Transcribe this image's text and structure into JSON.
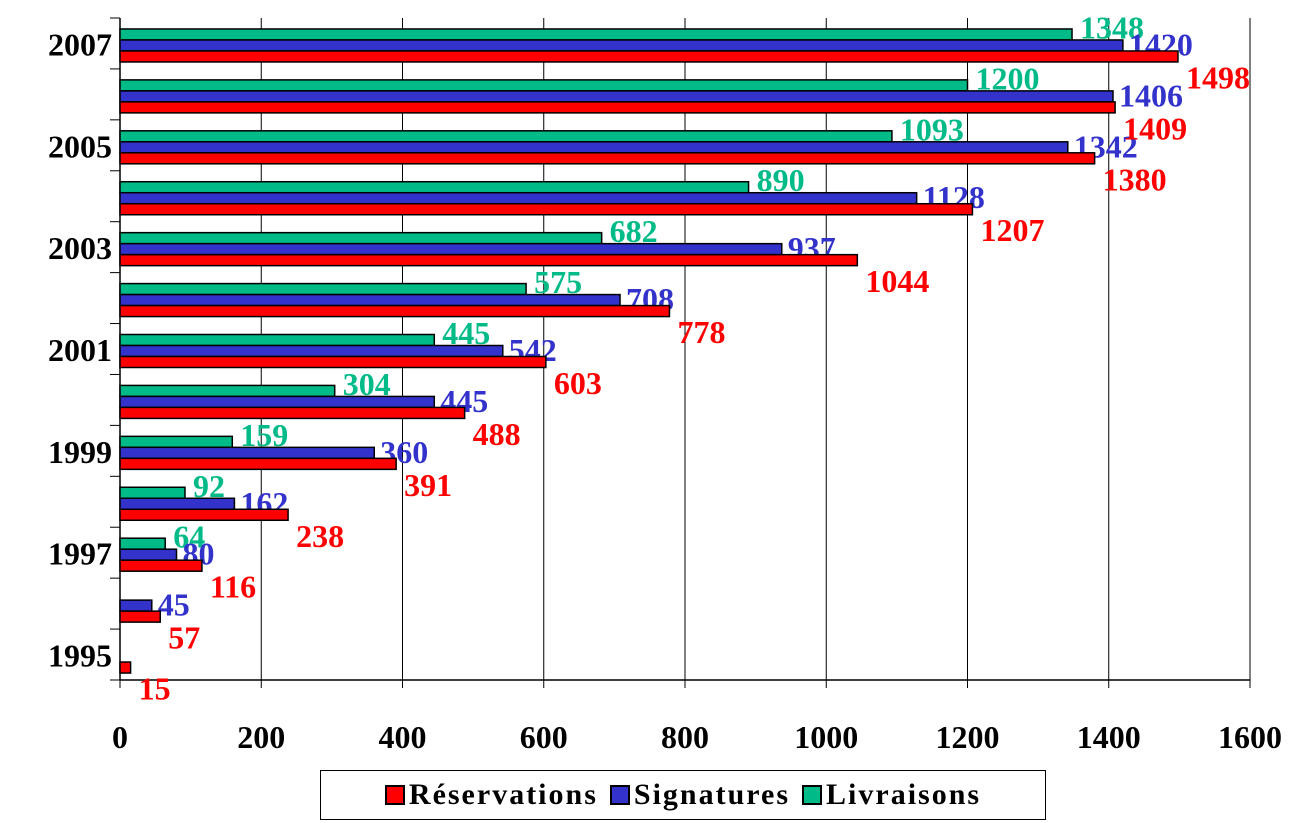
{
  "chart_data": {
    "type": "bar",
    "orientation": "horizontal",
    "categories": [
      "1995",
      "1996",
      "1997",
      "1998",
      "1999",
      "2000",
      "2001",
      "2002",
      "2003",
      "2004",
      "2005",
      "2006",
      "2007"
    ],
    "category_tick_labels": [
      "1995",
      "",
      "1997",
      "",
      "1999",
      "",
      "2001",
      "",
      "2003",
      "",
      "2005",
      "",
      "2007"
    ],
    "series": [
      {
        "name": "Réservations",
        "color": "#ff0000",
        "values": [
          15,
          57,
          116,
          238,
          391,
          488,
          603,
          778,
          1044,
          1207,
          1380,
          1409,
          1498
        ]
      },
      {
        "name": "Signatures",
        "color": "#3333cc",
        "values": [
          null,
          45,
          80,
          162,
          360,
          445,
          542,
          708,
          937,
          1128,
          1342,
          1406,
          1420
        ]
      },
      {
        "name": "Livraisons",
        "color": "#00bb88",
        "values": [
          null,
          null,
          64,
          92,
          159,
          304,
          445,
          575,
          682,
          890,
          1093,
          1200,
          1348
        ]
      }
    ],
    "x_ticks": [
      "0",
      "200",
      "400",
      "600",
      "800",
      "1000",
      "1200",
      "1400",
      "1600"
    ],
    "xlim": [
      0,
      1600
    ],
    "title": "",
    "xlabel": "",
    "ylabel": "",
    "grid": "vertical",
    "legend_position": "bottom"
  },
  "legend": {
    "items": [
      {
        "label": "Réservations",
        "color": "#ff0000"
      },
      {
        "label": "Signatures",
        "color": "#3333cc"
      },
      {
        "label": "Livraisons",
        "color": "#00bb88"
      }
    ]
  }
}
